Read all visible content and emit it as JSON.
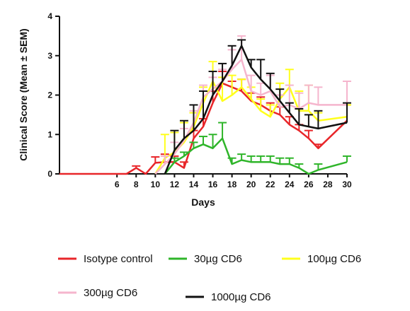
{
  "chart_data": {
    "type": "line",
    "title": "",
    "xlabel": "Days",
    "ylabel": "Clinical Score (Mean ± SEM)",
    "xlim": [
      0,
      30
    ],
    "ylim": [
      0,
      4
    ],
    "x_ticks": [
      6,
      8,
      10,
      12,
      14,
      16,
      18,
      20,
      22,
      24,
      26,
      28,
      30
    ],
    "x_tick_labels": [
      "6",
      "8",
      "10",
      "12",
      "14",
      "16",
      "18",
      "20",
      "22",
      "24",
      "26",
      "28",
      "30"
    ],
    "y_ticks": [
      0,
      1,
      2,
      3,
      4
    ],
    "y_tick_labels": [
      "0",
      "1",
      "2",
      "3",
      "4"
    ],
    "grid": false,
    "legend_position": "bottom",
    "series": [
      {
        "name": "Isotype control",
        "color": "#e8262a",
        "x": [
          0,
          6,
          7,
          8,
          9,
          10,
          11,
          12,
          13,
          14,
          15,
          16,
          17,
          18,
          19,
          20,
          21,
          22,
          23,
          24,
          25,
          26,
          27,
          30
        ],
        "y": [
          0,
          0,
          0,
          0.15,
          0,
          0.28,
          0.3,
          0.3,
          0.15,
          0.9,
          1.2,
          1.8,
          2.3,
          2.2,
          2.1,
          1.85,
          1.75,
          1.6,
          1.5,
          1.25,
          1.1,
          0.9,
          0.65,
          1.35
        ],
        "err": [
          0,
          0,
          0,
          0.05,
          0,
          0.15,
          0.2,
          0.15,
          0.15,
          0.2,
          0.2,
          0.3,
          0.3,
          0.15,
          0.3,
          0.2,
          0.2,
          0.2,
          0.2,
          0.2,
          0.15,
          0.2,
          0.1,
          0.4
        ]
      },
      {
        "name": "30µg CD6",
        "color": "#2fb52a",
        "x": [
          11,
          12,
          13,
          14,
          15,
          16,
          17,
          18,
          19,
          20,
          21,
          22,
          23,
          24,
          25,
          26,
          27,
          30
        ],
        "y": [
          0,
          0.3,
          0.45,
          0.65,
          0.75,
          0.65,
          0.9,
          0.25,
          0.35,
          0.3,
          0.3,
          0.3,
          0.25,
          0.25,
          0.15,
          0,
          0.1,
          0.3
        ],
        "err": [
          0,
          0.1,
          0.1,
          0.15,
          0.2,
          0.35,
          0.4,
          0.15,
          0.15,
          0.15,
          0.15,
          0.15,
          0.15,
          0.15,
          0.1,
          0,
          0.15,
          0.15
        ]
      },
      {
        "name": "100µg CD6",
        "color": "#ffff1c",
        "x": [
          10,
          11,
          12,
          13,
          14,
          15,
          16,
          17,
          18,
          19,
          20,
          21,
          22,
          23,
          24,
          25,
          26,
          27,
          30
        ],
        "y": [
          0,
          0.4,
          0.55,
          0.8,
          1.2,
          1.8,
          2.35,
          1.85,
          2.0,
          2.2,
          1.9,
          1.6,
          1.45,
          1.9,
          2.2,
          1.6,
          1.6,
          1.35,
          1.45
        ],
        "err": [
          0,
          0.6,
          0.5,
          0.5,
          0.35,
          0.4,
          0.5,
          0.6,
          0.5,
          0.2,
          0.3,
          0.3,
          0.3,
          0.4,
          0.45,
          0.5,
          0.65,
          0.2,
          0.3
        ]
      },
      {
        "name": "300µg CD6",
        "color": "#f5b5cd",
        "x": [
          10,
          11,
          12,
          13,
          14,
          15,
          16,
          17,
          18,
          19,
          20,
          21,
          22,
          23,
          24,
          25,
          26,
          27,
          30
        ],
        "y": [
          0,
          0.25,
          0.5,
          0.85,
          1.3,
          1.95,
          2.15,
          2.35,
          2.65,
          2.9,
          2.1,
          2.0,
          2.1,
          1.7,
          1.75,
          1.65,
          1.8,
          1.75,
          1.75
        ],
        "err": [
          0,
          0.2,
          0.3,
          0.3,
          0.3,
          0.3,
          0.3,
          0.3,
          0.5,
          0.6,
          0.4,
          0.3,
          0.4,
          0.3,
          0.5,
          0.4,
          0.45,
          0.45,
          0.6
        ]
      },
      {
        "name": "1000µg CD6",
        "color": "#111111",
        "x": [
          11,
          12,
          13,
          14,
          15,
          16,
          17,
          18,
          19,
          20,
          21,
          22,
          23,
          24,
          25,
          26,
          27,
          30
        ],
        "y": [
          0,
          0.6,
          0.9,
          1.1,
          1.4,
          2.0,
          2.35,
          2.75,
          3.25,
          2.7,
          2.4,
          2.15,
          1.85,
          1.55,
          1.25,
          1.2,
          1.15,
          1.3
        ],
        "err": [
          0,
          0.5,
          0.45,
          0.65,
          0.7,
          0.6,
          0.45,
          0.5,
          0.15,
          0.2,
          0.5,
          0.4,
          0.3,
          0.25,
          0.4,
          0.3,
          0.45,
          0.5
        ]
      }
    ]
  }
}
